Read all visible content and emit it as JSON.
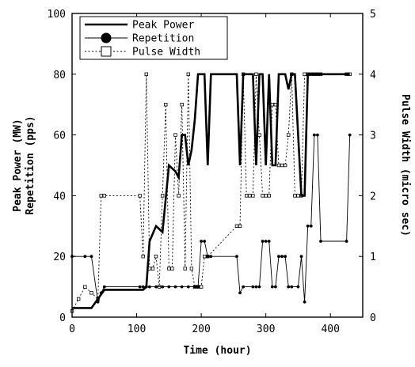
{
  "chart_data": {
    "type": "line",
    "xlabel": "Time (hour)",
    "ylabel_left_lines": [
      "Peak Power (MW)",
      "Repetition (pps)"
    ],
    "ylabel_right": "Pulse Width (micro sec)",
    "xlim": [
      0,
      450
    ],
    "ylim_left": [
      0,
      100
    ],
    "ylim_right": [
      0,
      5
    ],
    "x_ticks": [
      0,
      100,
      200,
      300,
      400
    ],
    "y_ticks_left": [
      0,
      20,
      40,
      60,
      80,
      100
    ],
    "y_ticks_right": [
      0,
      1,
      2,
      3,
      4,
      5
    ],
    "grid": false,
    "legend_position": "top-left",
    "series": [
      {
        "name": "Peak Power",
        "axis": "left",
        "style": "thick-solid",
        "points": [
          [
            0,
            3
          ],
          [
            30,
            3
          ],
          [
            40,
            6
          ],
          [
            50,
            9
          ],
          [
            110,
            9
          ],
          [
            115,
            10
          ],
          [
            120,
            25
          ],
          [
            130,
            30
          ],
          [
            140,
            28
          ],
          [
            150,
            50
          ],
          [
            160,
            48
          ],
          [
            165,
            46
          ],
          [
            170,
            60
          ],
          [
            175,
            60
          ],
          [
            180,
            50
          ],
          [
            185,
            55
          ],
          [
            190,
            65
          ],
          [
            195,
            80
          ],
          [
            205,
            80
          ],
          [
            210,
            50
          ],
          [
            215,
            80
          ],
          [
            255,
            80
          ],
          [
            260,
            50
          ],
          [
            265,
            80
          ],
          [
            280,
            80
          ],
          [
            285,
            50
          ],
          [
            290,
            80
          ],
          [
            295,
            80
          ],
          [
            300,
            50
          ],
          [
            305,
            80
          ],
          [
            310,
            50
          ],
          [
            315,
            50
          ],
          [
            320,
            80
          ],
          [
            330,
            80
          ],
          [
            335,
            75
          ],
          [
            340,
            80
          ],
          [
            345,
            80
          ],
          [
            355,
            40
          ],
          [
            360,
            40
          ],
          [
            365,
            80
          ],
          [
            370,
            80
          ],
          [
            430,
            80
          ]
        ]
      },
      {
        "name": "Repetition",
        "axis": "left",
        "style": "thin-solid-filled-circle",
        "points": [
          [
            0,
            20
          ],
          [
            20,
            20
          ],
          [
            30,
            20
          ],
          [
            40,
            5
          ],
          [
            45,
            8
          ],
          [
            50,
            10
          ],
          [
            105,
            10
          ],
          [
            110,
            10
          ],
          [
            115,
            10
          ],
          [
            120,
            10
          ],
          [
            130,
            10
          ],
          [
            140,
            10
          ],
          [
            150,
            10
          ],
          [
            160,
            10
          ],
          [
            170,
            10
          ],
          [
            180,
            10
          ],
          [
            190,
            10
          ],
          [
            195,
            10
          ],
          [
            200,
            25
          ],
          [
            205,
            25
          ],
          [
            210,
            20
          ],
          [
            215,
            20
          ],
          [
            255,
            20
          ],
          [
            260,
            8
          ],
          [
            265,
            10
          ],
          [
            280,
            10
          ],
          [
            285,
            10
          ],
          [
            290,
            10
          ],
          [
            295,
            25
          ],
          [
            300,
            25
          ],
          [
            305,
            25
          ],
          [
            310,
            10
          ],
          [
            315,
            10
          ],
          [
            320,
            20
          ],
          [
            325,
            20
          ],
          [
            330,
            20
          ],
          [
            335,
            10
          ],
          [
            340,
            10
          ],
          [
            350,
            10
          ],
          [
            355,
            20
          ],
          [
            360,
            5
          ],
          [
            365,
            30
          ],
          [
            370,
            30
          ],
          [
            375,
            60
          ],
          [
            380,
            60
          ],
          [
            385,
            25
          ],
          [
            425,
            25
          ],
          [
            430,
            60
          ]
        ]
      },
      {
        "name": "Pulse Width",
        "axis": "right",
        "style": "dotted-open-square",
        "points": [
          [
            0,
            0.1
          ],
          [
            10,
            0.3
          ],
          [
            20,
            0.5
          ],
          [
            30,
            0.4
          ],
          [
            40,
            0.3
          ],
          [
            45,
            2
          ],
          [
            50,
            2
          ],
          [
            105,
            2
          ],
          [
            110,
            1
          ],
          [
            115,
            4
          ],
          [
            120,
            0.8
          ],
          [
            125,
            0.8
          ],
          [
            130,
            1
          ],
          [
            135,
            0.5
          ],
          [
            140,
            2
          ],
          [
            145,
            3.5
          ],
          [
            150,
            0.8
          ],
          [
            155,
            0.8
          ],
          [
            160,
            3
          ],
          [
            165,
            2
          ],
          [
            170,
            3.5
          ],
          [
            175,
            0.8
          ],
          [
            180,
            4
          ],
          [
            185,
            0.8
          ],
          [
            190,
            0.5
          ],
          [
            195,
            0.5
          ],
          [
            200,
            0.5
          ],
          [
            205,
            1
          ],
          [
            210,
            1
          ],
          [
            255,
            1.5
          ],
          [
            260,
            1.5
          ],
          [
            265,
            4
          ],
          [
            270,
            2
          ],
          [
            275,
            2
          ],
          [
            280,
            2
          ],
          [
            285,
            4
          ],
          [
            290,
            3
          ],
          [
            295,
            2
          ],
          [
            300,
            2
          ],
          [
            305,
            2
          ],
          [
            310,
            3.5
          ],
          [
            315,
            3.5
          ],
          [
            320,
            2.5
          ],
          [
            325,
            2.5
          ],
          [
            330,
            2.5
          ],
          [
            335,
            3
          ],
          [
            340,
            4
          ],
          [
            345,
            2
          ],
          [
            350,
            2
          ],
          [
            355,
            2
          ],
          [
            360,
            4
          ],
          [
            365,
            4
          ],
          [
            370,
            4
          ],
          [
            375,
            4
          ],
          [
            380,
            4
          ],
          [
            385,
            4
          ],
          [
            425,
            4
          ],
          [
            430,
            4
          ]
        ]
      }
    ]
  }
}
